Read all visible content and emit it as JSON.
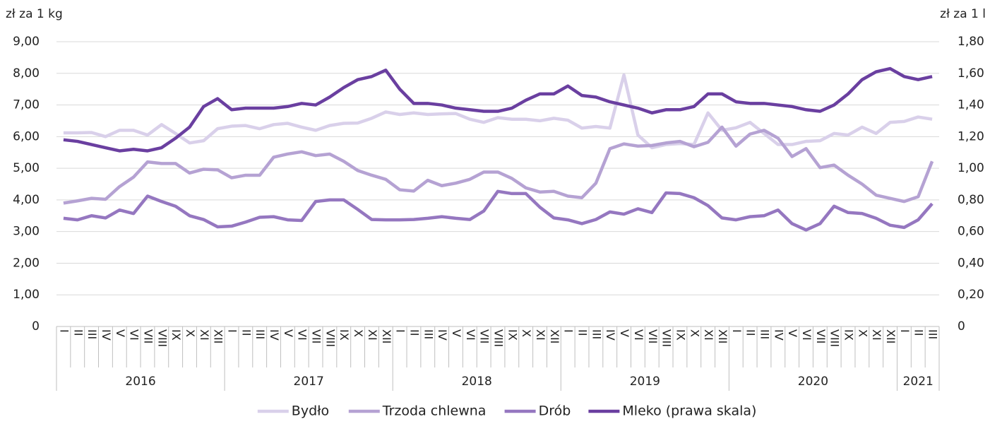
{
  "chart_data": {
    "type": "line",
    "ylabel": "zł za 1 kg",
    "y2label": "zł za 1 l",
    "groups": [
      {
        "name": "2016",
        "categories": [
          "I",
          "II",
          "III",
          "IV",
          "V",
          "VI",
          "VII",
          "VIII",
          "IX",
          "X",
          "XI",
          "XII"
        ]
      },
      {
        "name": "2017",
        "categories": [
          "I",
          "II",
          "III",
          "IV",
          "V",
          "VI",
          "VII",
          "VIII",
          "IX",
          "X",
          "XI",
          "XII"
        ]
      },
      {
        "name": "2018",
        "categories": [
          "I",
          "II",
          "III",
          "IV",
          "V",
          "VI",
          "VII",
          "VIII",
          "IX",
          "X",
          "XI",
          "XII"
        ]
      },
      {
        "name": "2019",
        "categories": [
          "I",
          "II",
          "III",
          "IV",
          "V",
          "VI",
          "VII",
          "VIII",
          "IX",
          "X",
          "XI",
          "XII"
        ]
      },
      {
        "name": "2020",
        "categories": [
          "I",
          "II",
          "III",
          "IV",
          "V",
          "VI",
          "VII",
          "VIII",
          "IX",
          "X",
          "XI",
          "XII"
        ]
      },
      {
        "name": "2021",
        "categories": [
          "I",
          "II",
          "III"
        ]
      }
    ],
    "series": [
      {
        "name": "Bydło",
        "color": "#d9d0ea",
        "values": [
          6.12,
          6.12,
          6.13,
          6.0,
          6.2,
          6.2,
          6.05,
          6.38,
          6.1,
          5.8,
          5.87,
          6.25,
          6.33,
          6.35,
          6.25,
          6.38,
          6.42,
          6.3,
          6.2,
          6.35,
          6.42,
          6.43,
          6.58,
          6.78,
          6.7,
          6.75,
          6.7,
          6.72,
          6.73,
          6.55,
          6.45,
          6.6,
          6.55,
          6.55,
          6.5,
          6.58,
          6.52,
          6.27,
          6.32,
          6.27,
          7.95,
          6.05,
          5.65,
          5.75,
          5.78,
          5.75,
          6.75,
          6.2,
          6.28,
          6.45,
          6.1,
          5.75,
          5.75,
          5.85,
          5.87,
          6.1,
          6.05,
          6.3,
          6.1,
          6.45,
          6.48,
          6.62,
          6.55
        ]
      },
      {
        "name": "Trzoda chlewna",
        "color": "#b5a2d3",
        "values": [
          3.9,
          3.97,
          4.05,
          4.02,
          4.42,
          4.72,
          5.2,
          5.15,
          5.15,
          4.85,
          4.97,
          4.95,
          4.7,
          4.78,
          4.78,
          5.35,
          5.45,
          5.52,
          5.4,
          5.45,
          5.22,
          4.93,
          4.78,
          4.65,
          4.32,
          4.28,
          4.62,
          4.45,
          4.53,
          4.65,
          4.88,
          4.88,
          4.68,
          4.38,
          4.25,
          4.27,
          4.12,
          4.07,
          4.53,
          5.62,
          5.77,
          5.7,
          5.72,
          5.8,
          5.85,
          5.68,
          5.82,
          6.3,
          5.7,
          6.08,
          6.2,
          5.95,
          5.37,
          5.62,
          5.02,
          5.1,
          4.78,
          4.5,
          4.15,
          4.05,
          3.95,
          4.1,
          5.22
        ]
      },
      {
        "name": "Drób",
        "color": "#9577c0",
        "values": [
          3.42,
          3.37,
          3.5,
          3.43,
          3.68,
          3.57,
          4.12,
          3.95,
          3.8,
          3.5,
          3.38,
          3.15,
          3.17,
          3.3,
          3.45,
          3.47,
          3.37,
          3.35,
          3.95,
          4.0,
          4.0,
          3.7,
          3.38,
          3.37,
          3.37,
          3.38,
          3.42,
          3.47,
          3.42,
          3.38,
          3.65,
          4.27,
          4.2,
          4.2,
          3.77,
          3.43,
          3.37,
          3.25,
          3.38,
          3.62,
          3.55,
          3.72,
          3.6,
          4.22,
          4.2,
          4.07,
          3.82,
          3.43,
          3.37,
          3.47,
          3.5,
          3.68,
          3.25,
          3.05,
          3.25,
          3.8,
          3.6,
          3.57,
          3.42,
          3.2,
          3.13,
          3.37,
          3.88
        ]
      },
      {
        "name": "Mleko (prawa skala)",
        "color": "#6a3fa0",
        "axis": "y2",
        "values": [
          1.18,
          1.17,
          1.15,
          1.13,
          1.11,
          1.12,
          1.11,
          1.13,
          1.19,
          1.26,
          1.39,
          1.44,
          1.37,
          1.38,
          1.38,
          1.38,
          1.39,
          1.41,
          1.4,
          1.45,
          1.51,
          1.56,
          1.58,
          1.62,
          1.5,
          1.41,
          1.41,
          1.4,
          1.38,
          1.37,
          1.36,
          1.36,
          1.38,
          1.43,
          1.47,
          1.47,
          1.52,
          1.46,
          1.45,
          1.42,
          1.4,
          1.38,
          1.35,
          1.37,
          1.37,
          1.39,
          1.47,
          1.47,
          1.42,
          1.41,
          1.41,
          1.4,
          1.39,
          1.37,
          1.36,
          1.4,
          1.47,
          1.56,
          1.61,
          1.63,
          1.58,
          1.56,
          1.58
        ]
      }
    ],
    "ylim": [
      0,
      9
    ],
    "yticks": [
      0,
      {
        "value": 1,
        "label": "1,00"
      },
      {
        "value": 2,
        "label": "2,00"
      },
      {
        "value": 3,
        "label": "3,00"
      },
      {
        "value": 4,
        "label": "4,00"
      },
      {
        "value": 5,
        "label": "5,00"
      },
      {
        "value": 6,
        "label": "6,00"
      },
      {
        "value": 7,
        "label": "7,00"
      },
      {
        "value": 8,
        "label": "8,00"
      },
      {
        "value": 9,
        "label": "9,00"
      }
    ],
    "y2lim": [
      0,
      1.8
    ],
    "y2ticks": [
      0,
      {
        "value": 0.2,
        "label": "0,20"
      },
      {
        "value": 0.4,
        "label": "0,40"
      },
      {
        "value": 0.6,
        "label": "0,60"
      },
      {
        "value": 0.8,
        "label": "0,80"
      },
      {
        "value": 1,
        "label": "1,00"
      },
      {
        "value": 1.2,
        "label": "1,20"
      },
      {
        "value": 1.4,
        "label": "1,40"
      },
      {
        "value": 1.6,
        "label": "1,60"
      },
      {
        "value": 1.8,
        "label": "1,80"
      }
    ],
    "grid": true,
    "legend": "bottom"
  }
}
